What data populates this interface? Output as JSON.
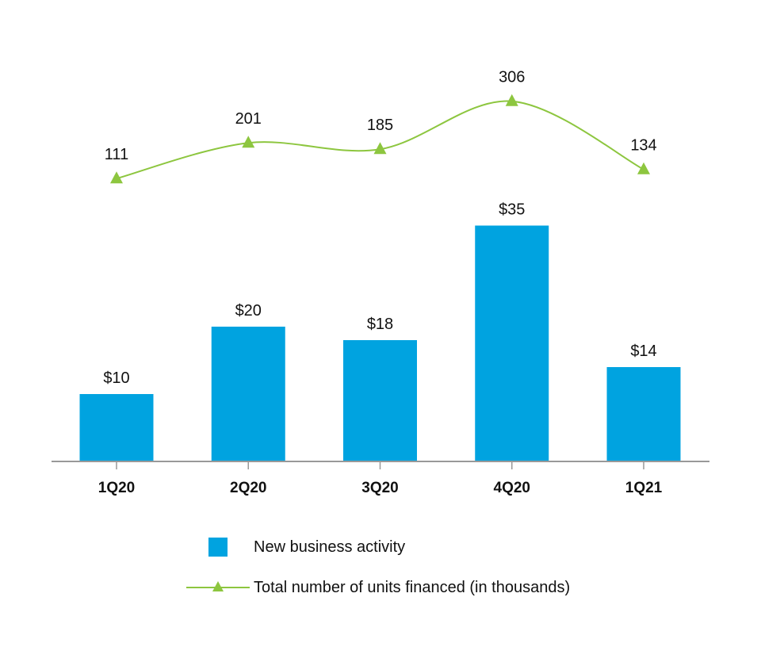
{
  "chart_data": {
    "type": "bar",
    "categories": [
      "1Q20",
      "2Q20",
      "3Q20",
      "4Q20",
      "1Q21"
    ],
    "series": [
      {
        "name": "New business activity",
        "type": "bar",
        "values": [
          10,
          20,
          18,
          35,
          14
        ],
        "labels": [
          "$10",
          "$20",
          "$18",
          "$35",
          "$14"
        ],
        "color": "#00A3E0"
      },
      {
        "name": "Total number of units financed (in thousands)",
        "type": "line",
        "marker": "triangle",
        "values": [
          111,
          201,
          185,
          306,
          134
        ],
        "labels": [
          "111",
          "201",
          "185",
          "306",
          "134"
        ],
        "color": "#8DC63F"
      }
    ],
    "title": "",
    "xlabel": "",
    "ylabel": "",
    "axis_color": "#999999",
    "legend_position": "bottom"
  }
}
